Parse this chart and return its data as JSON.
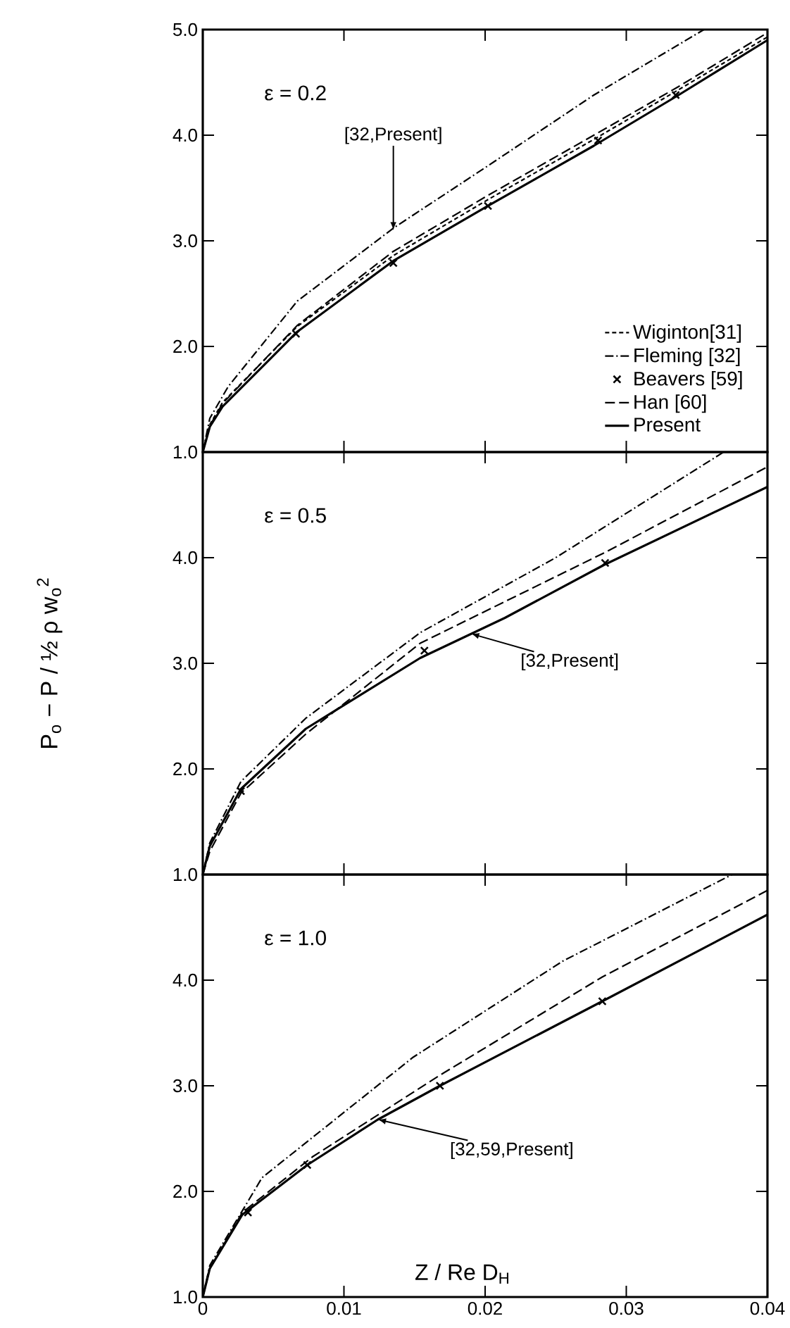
{
  "chart_data": [
    {
      "type": "line",
      "xlim": [
        0,
        0.04
      ],
      "ylim": [
        1,
        5
      ],
      "tick_labels": "y",
      "legend": "bottom right",
      "xticks": [
        {
          "value": 0,
          "label": null
        },
        {
          "value": 0.01,
          "label": null
        },
        {
          "value": 0.02,
          "label": null
        },
        {
          "value": 0.03,
          "label": null
        },
        {
          "value": 0.04,
          "label": null
        }
      ],
      "yticks": [
        {
          "value": 1,
          "label": "1.0"
        },
        {
          "value": 2,
          "label": "2.0"
        },
        {
          "value": 3,
          "label": "3.0"
        },
        {
          "value": 4,
          "label": "4.0"
        },
        {
          "value": 5,
          "label": "5.0"
        }
      ],
      "annotations": [
        "ε = 0.2",
        {
          "text": "[32,Present]",
          "x": 0.0135,
          "y": 3.1
        }
      ],
      "series": [
        {
          "name": "Wiginton[31]",
          "color": "#000000",
          "line_style": "densely dashed",
          "x": [
            0,
            0.0005,
            0.0014,
            0.0067,
            0.0135,
            0.0202,
            0.0277,
            0.0337,
            0.04
          ],
          "values": [
            1.0,
            1.26,
            1.47,
            2.19,
            2.86,
            3.39,
            3.96,
            4.43,
            4.93
          ]
        },
        {
          "name": "Fleming [32]",
          "color": "#000000",
          "line_style": "dashdotted",
          "x": [
            0,
            0.0005,
            0.0018,
            0.0067,
            0.0135,
            0.0202,
            0.0277,
            0.0355
          ],
          "values": [
            1.0,
            1.32,
            1.62,
            2.43,
            3.12,
            3.71,
            4.38,
            5.0
          ]
        },
        {
          "name": "Beavers [59]",
          "color": "#000000",
          "type": "scatter",
          "marker": "cross",
          "x": [
            0.0066,
            0.0135,
            0.0202,
            0.028,
            0.0335
          ],
          "values": [
            2.12,
            2.79,
            3.33,
            3.95,
            4.38
          ]
        },
        {
          "name": "Han [60]",
          "color": "#000000",
          "line_style": "dashed",
          "x": [
            0,
            0.0005,
            0.0014,
            0.0067,
            0.0135,
            0.0202,
            0.0277,
            0.0337,
            0.04
          ],
          "values": [
            1.0,
            1.25,
            1.46,
            2.2,
            2.9,
            3.43,
            4.0,
            4.46,
            4.97
          ]
        },
        {
          "name": "Present",
          "color": "#000000",
          "line_style": "solid",
          "x": [
            0,
            0.0005,
            0.0014,
            0.0067,
            0.0135,
            0.0202,
            0.0277,
            0.0337,
            0.04
          ],
          "values": [
            1.0,
            1.24,
            1.43,
            2.14,
            2.81,
            3.33,
            3.9,
            4.38,
            4.9
          ]
        }
      ]
    },
    {
      "type": "line",
      "xlim": [
        0,
        0.04
      ],
      "ylim": [
        1,
        5
      ],
      "tick_labels": "y",
      "ylabel": "P$_{o}$ − P / ½ ρ w$_{o}$$^{2}$",
      "xticks": [
        {
          "value": 0,
          "label": null
        },
        {
          "value": 0.01,
          "label": null
        },
        {
          "value": 0.02,
          "label": null
        },
        {
          "value": 0.03,
          "label": null
        },
        {
          "value": 0.04,
          "label": null
        }
      ],
      "yticks": [
        {
          "value": 1,
          "label": "1.0"
        },
        {
          "value": 2,
          "label": "2.0"
        },
        {
          "value": 3,
          "label": "3.0"
        },
        {
          "value": 4,
          "label": "4.0"
        },
        {
          "value": 5,
          "label": null
        }
      ],
      "annotations": [
        "ε = 0.5",
        {
          "text": "[32,Present]",
          "x": 0.019,
          "y": 3.28
        }
      ],
      "series": [
        {
          "color": "#000000",
          "line_style": "dashdotted",
          "x": [
            0,
            0.0005,
            0.0027,
            0.0073,
            0.0154,
            0.025,
            0.0369
          ],
          "values": [
            1.0,
            1.3,
            1.88,
            2.48,
            3.29,
            4.0,
            5.0
          ]
        },
        {
          "color": "#000000",
          "line_style": "dashed",
          "x": [
            0,
            0.0005,
            0.0027,
            0.0073,
            0.0154,
            0.0285,
            0.04
          ],
          "values": [
            1.0,
            1.22,
            1.77,
            2.33,
            3.19,
            4.05,
            4.86
          ]
        },
        {
          "color": "#000000",
          "type": "scatter",
          "marker": "cross",
          "x": [
            0.0027,
            0.0157,
            0.0285
          ],
          "values": [
            1.79,
            3.12,
            3.95
          ]
        },
        {
          "color": "#000000",
          "line_style": "solid",
          "x": [
            0,
            0.0005,
            0.0027,
            0.0073,
            0.0154,
            0.0214,
            0.0284,
            0.04
          ],
          "values": [
            1.0,
            1.27,
            1.81,
            2.38,
            3.05,
            3.43,
            3.93,
            4.67
          ]
        }
      ]
    },
    {
      "type": "line",
      "xlim": [
        0,
        0.04
      ],
      "ylim": [
        1,
        5
      ],
      "xlabel": "Z / Re D$_{H}$",
      "xticks": [
        0,
        {
          "value": 0.01,
          "label": "0.01"
        },
        {
          "value": 0.02,
          "label": "0.02"
        },
        {
          "value": 0.03,
          "label": "0.03"
        },
        {
          "value": 0.04,
          "label": "0.04"
        }
      ],
      "yticks": [
        {
          "value": 1,
          "label": "1.0"
        },
        {
          "value": 2,
          "label": "2.0"
        },
        {
          "value": 3,
          "label": "3.0"
        },
        {
          "value": 4,
          "label": "4.0"
        },
        {
          "value": 5,
          "label": null
        }
      ],
      "annotations": [
        "ε = 1.0",
        {
          "text": "[32,59,Present]",
          "x": 0.0124,
          "y": 2.68
        }
      ],
      "series": [
        {
          "color": "#000000",
          "line_style": "dashdotted",
          "x": [
            0,
            0.0005,
            0.0042,
            0.0149,
            0.0255,
            0.0375
          ],
          "values": [
            1.0,
            1.3,
            2.13,
            3.27,
            4.18,
            5.0
          ]
        },
        {
          "color": "#000000",
          "line_style": "dashed",
          "x": [
            0,
            0.0005,
            0.0028,
            0.0078,
            0.0168,
            0.0283,
            0.04
          ],
          "values": [
            1.0,
            1.27,
            1.8,
            2.33,
            3.1,
            4.03,
            4.85
          ]
        },
        {
          "color": "#000000",
          "type": "scatter",
          "marker": "cross",
          "x": [
            0.0032,
            0.0074,
            0.0168,
            0.0283
          ],
          "values": [
            1.8,
            2.25,
            3.0,
            3.8
          ]
        },
        {
          "color": "#000000",
          "line_style": "solid",
          "x": [
            0,
            0.0005,
            0.0028,
            0.0074,
            0.0124,
            0.0168,
            0.0283,
            0.04
          ],
          "values": [
            1.0,
            1.27,
            1.78,
            2.25,
            2.68,
            3.0,
            3.8,
            4.62
          ]
        }
      ]
    }
  ]
}
